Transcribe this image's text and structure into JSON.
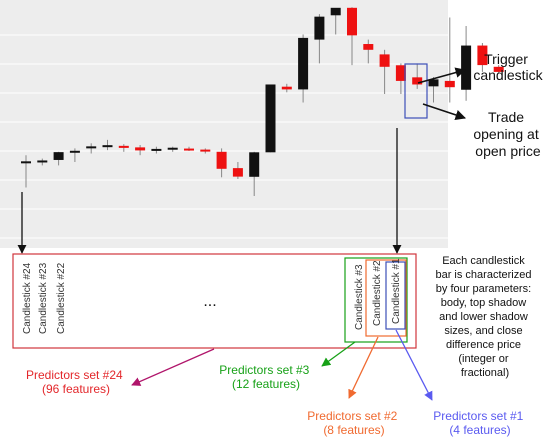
{
  "chart_data": {
    "type": "candlestick",
    "note_values": "approximate price units read from vertical position (no axis labels printed)",
    "candles": [
      {
        "o": 40.2,
        "h": 44.0,
        "l": 25.0,
        "c": 40.4
      },
      {
        "o": 40.7,
        "h": 42.0,
        "l": 38.0,
        "c": 40.9
      },
      {
        "o": 41.2,
        "h": 46.0,
        "l": 38.0,
        "c": 45.8
      },
      {
        "o": 46.2,
        "h": 48.0,
        "l": 40.0,
        "c": 46.6
      },
      {
        "o": 48.6,
        "h": 51.0,
        "l": 45.0,
        "c": 49.2
      },
      {
        "o": 49.5,
        "h": 53.0,
        "l": 47.0,
        "c": 49.9
      },
      {
        "o": 49.5,
        "h": 50.5,
        "l": 46.0,
        "c": 48.3
      },
      {
        "o": 48.6,
        "h": 50.0,
        "l": 44.0,
        "c": 46.8
      },
      {
        "o": 47.3,
        "h": 49.0,
        "l": 45.0,
        "c": 47.7
      },
      {
        "o": 48.0,
        "h": 49.0,
        "l": 46.0,
        "c": 48.4
      },
      {
        "o": 47.9,
        "h": 49.0,
        "l": 46.5,
        "c": 47.5
      },
      {
        "o": 47.3,
        "h": 48.0,
        "l": 45.0,
        "c": 46.7
      },
      {
        "o": 46.0,
        "h": 48.0,
        "l": 31.0,
        "c": 36.0
      },
      {
        "o": 36.4,
        "h": 40.0,
        "l": 30.0,
        "c": 31.4
      },
      {
        "o": 31.3,
        "h": 46.0,
        "l": 20.0,
        "c": 45.7
      },
      {
        "o": 45.7,
        "h": 85.0,
        "l": 45.7,
        "c": 85.6
      },
      {
        "o": 84.3,
        "h": 86.0,
        "l": 81.0,
        "c": 82.7
      },
      {
        "o": 82.7,
        "h": 115.0,
        "l": 75.0,
        "c": 113.0
      },
      {
        "o": 112.0,
        "h": 127.0,
        "l": 98.0,
        "c": 125.5
      },
      {
        "o": 126.3,
        "h": 130.0,
        "l": 115.0,
        "c": 130.7
      },
      {
        "o": 130.7,
        "h": 131.0,
        "l": 97.0,
        "c": 114.5
      },
      {
        "o": 109.4,
        "h": 112.0,
        "l": 98.0,
        "c": 106.0
      },
      {
        "o": 103.3,
        "h": 106.0,
        "l": 80.0,
        "c": 96.0
      },
      {
        "o": 96.9,
        "h": 98.0,
        "l": 80.0,
        "c": 87.7
      },
      {
        "o": 89.8,
        "h": 98.0,
        "l": 83.0,
        "c": 85.6
      },
      {
        "o": 84.5,
        "h": 90.0,
        "l": 75.0,
        "c": 88.6
      },
      {
        "o": 87.7,
        "h": 125.0,
        "l": 75.0,
        "c": 84.0
      },
      {
        "o": 82.5,
        "h": 120.0,
        "l": 76.0,
        "c": 108.5
      },
      {
        "o": 108.5,
        "h": 110.0,
        "l": 93.0,
        "c": 97.0
      },
      {
        "o": 96.0,
        "h": 97.0,
        "l": 92.0,
        "c": 93.0
      }
    ]
  },
  "annotations": {
    "trigger": [
      "Trigger",
      "candlestick"
    ],
    "trade": [
      "Trade",
      "opening at",
      "open price"
    ],
    "description": [
      "Each candlestick",
      "bar is characterized",
      "by four parameters:",
      "body, top shadow",
      "and lower shadow",
      "sizes, and close",
      "difference price",
      "(integer or",
      "fractional)"
    ]
  },
  "feature_box": {
    "left_labels": [
      "Candlestick #24",
      "Candlestick #23",
      "Candlestick #22"
    ],
    "ellipsis": "...",
    "right_labels": [
      "Candlestick #3",
      "Candlestick #2",
      "Candlestick #1"
    ]
  },
  "predictor_sets": [
    {
      "line1": "Predictors set #24",
      "line2": "(96 features)",
      "color": "#e3272b"
    },
    {
      "line1": "Predictors set #3",
      "line2": "(12 features)",
      "color": "#17a117"
    },
    {
      "line1": "Predictors set #2",
      "line2": "(8 features)",
      "color": "#f06a30"
    },
    {
      "line1": "Predictors set #1",
      "line2": "(4 features)",
      "color": "#5a5af0"
    }
  ],
  "colors": {
    "bull": "#111111",
    "bear": "#ee1111",
    "chart_bg": "#ededed",
    "grid": "#ffffff",
    "outer_box": "#d0353c",
    "arrow_magenta": "#b0156b"
  }
}
